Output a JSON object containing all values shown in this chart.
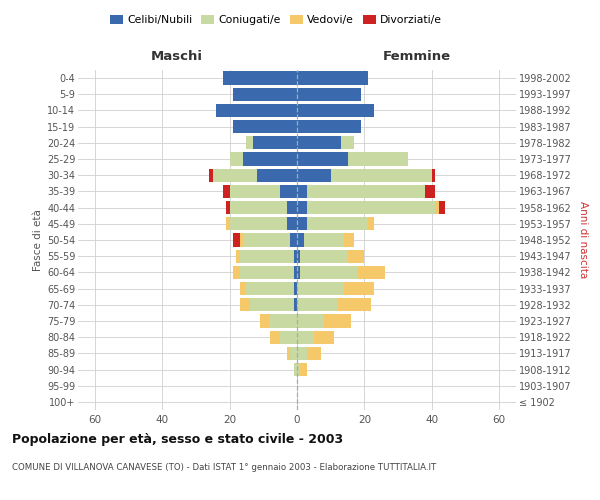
{
  "age_groups": [
    "100+",
    "95-99",
    "90-94",
    "85-89",
    "80-84",
    "75-79",
    "70-74",
    "65-69",
    "60-64",
    "55-59",
    "50-54",
    "45-49",
    "40-44",
    "35-39",
    "30-34",
    "25-29",
    "20-24",
    "15-19",
    "10-14",
    "5-9",
    "0-4"
  ],
  "birth_years": [
    "≤ 1902",
    "1903-1907",
    "1908-1912",
    "1913-1917",
    "1918-1922",
    "1923-1927",
    "1928-1932",
    "1933-1937",
    "1938-1942",
    "1943-1947",
    "1948-1952",
    "1953-1957",
    "1958-1962",
    "1963-1967",
    "1968-1972",
    "1973-1977",
    "1978-1982",
    "1983-1987",
    "1988-1992",
    "1993-1997",
    "1998-2002"
  ],
  "colors": {
    "celibi": "#3a6aad",
    "coniugati": "#c8daa2",
    "vedovi": "#f5c96a",
    "divorziati": "#cc2222"
  },
  "maschi": {
    "celibi": [
      0,
      0,
      0,
      0,
      0,
      0,
      1,
      1,
      1,
      1,
      2,
      3,
      3,
      5,
      12,
      16,
      13,
      19,
      24,
      19,
      22
    ],
    "coniugati": [
      0,
      0,
      1,
      2,
      5,
      8,
      13,
      14,
      16,
      16,
      14,
      17,
      17,
      15,
      13,
      4,
      2,
      0,
      0,
      0,
      0
    ],
    "vedovi": [
      0,
      0,
      0,
      1,
      3,
      3,
      3,
      2,
      2,
      1,
      1,
      1,
      0,
      0,
      0,
      0,
      0,
      0,
      0,
      0,
      0
    ],
    "divorziati": [
      0,
      0,
      0,
      0,
      0,
      0,
      0,
      0,
      0,
      0,
      2,
      0,
      1,
      2,
      1,
      0,
      0,
      0,
      0,
      0,
      0
    ]
  },
  "femmine": {
    "nubili": [
      0,
      0,
      0,
      0,
      0,
      0,
      0,
      0,
      1,
      1,
      2,
      3,
      3,
      3,
      10,
      15,
      13,
      19,
      23,
      19,
      21
    ],
    "coniugate": [
      0,
      0,
      1,
      3,
      5,
      8,
      12,
      14,
      17,
      14,
      12,
      18,
      38,
      35,
      30,
      18,
      4,
      0,
      0,
      0,
      0
    ],
    "vedove": [
      0,
      0,
      2,
      4,
      6,
      8,
      10,
      9,
      8,
      5,
      3,
      2,
      1,
      0,
      0,
      0,
      0,
      0,
      0,
      0,
      0
    ],
    "divorziate": [
      0,
      0,
      0,
      0,
      0,
      0,
      0,
      0,
      0,
      0,
      0,
      0,
      2,
      3,
      1,
      0,
      0,
      0,
      0,
      0,
      0
    ]
  },
  "title": "Popolazione per età, sesso e stato civile - 2003",
  "subtitle": "COMUNE DI VILLANOVA CANAVESE (TO) - Dati ISTAT 1° gennaio 2003 - Elaborazione TUTTITALIA.IT",
  "header_left": "Maschi",
  "header_right": "Femmine",
  "ylabel_left": "Fasce di età",
  "ylabel_right": "Anni di nascita",
  "xlim": 65,
  "background_color": "#ffffff",
  "grid_color": "#d0d0d0",
  "legend_labels": [
    "Celibi/Nubili",
    "Coniugati/e",
    "Vedovi/e",
    "Divorziati/e"
  ]
}
